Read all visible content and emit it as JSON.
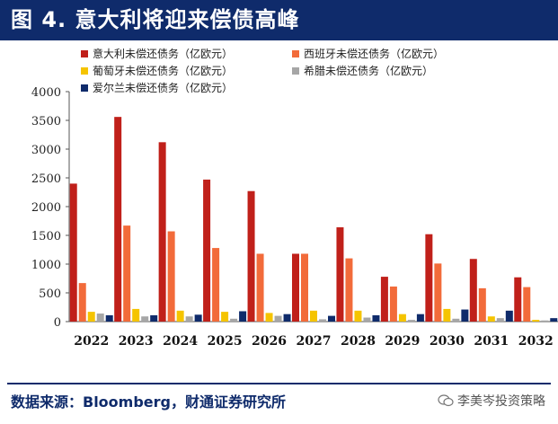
{
  "title": "图 4. 意大利将迎来偿债高峰",
  "source": "数据来源：Bloomberg，财通证券研究所",
  "watermark": "李美岑投资策略",
  "chart_data": {
    "type": "bar",
    "title": "",
    "xlabel": "",
    "ylabel": "",
    "ylim": [
      0,
      4000
    ],
    "yticks": [
      0,
      500,
      1000,
      1500,
      2000,
      2500,
      3000,
      3500,
      4000
    ],
    "grid": false,
    "legend_position": "top",
    "categories": [
      "2022",
      "2023",
      "2024",
      "2025",
      "2026",
      "2027",
      "2028",
      "2029",
      "2030",
      "2031",
      "2032"
    ],
    "series": [
      {
        "name": "意大利未偿还债务（亿欧元）",
        "color": "#c0201a",
        "values": [
          2400,
          3560,
          3120,
          2470,
          2270,
          1180,
          1640,
          780,
          1520,
          1090,
          770
        ]
      },
      {
        "name": "西班牙未偿还债务（亿欧元）",
        "color": "#f26b3a",
        "values": [
          670,
          1670,
          1570,
          1280,
          1180,
          1180,
          1100,
          610,
          1010,
          580,
          600
        ]
      },
      {
        "name": "葡萄牙未偿还债务（亿欧元）",
        "color": "#f5c400",
        "values": [
          170,
          220,
          190,
          170,
          150,
          190,
          190,
          130,
          220,
          90,
          30
        ]
      },
      {
        "name": "希腊未偿还债务（亿欧元）",
        "color": "#a6a6a6",
        "values": [
          140,
          90,
          90,
          50,
          100,
          40,
          70,
          30,
          50,
          60,
          20
        ]
      },
      {
        "name": "爱尔兰未偿还债务（亿欧元）",
        "color": "#0f2b6b",
        "values": [
          110,
          110,
          120,
          180,
          130,
          100,
          110,
          130,
          210,
          190,
          60
        ]
      }
    ]
  }
}
